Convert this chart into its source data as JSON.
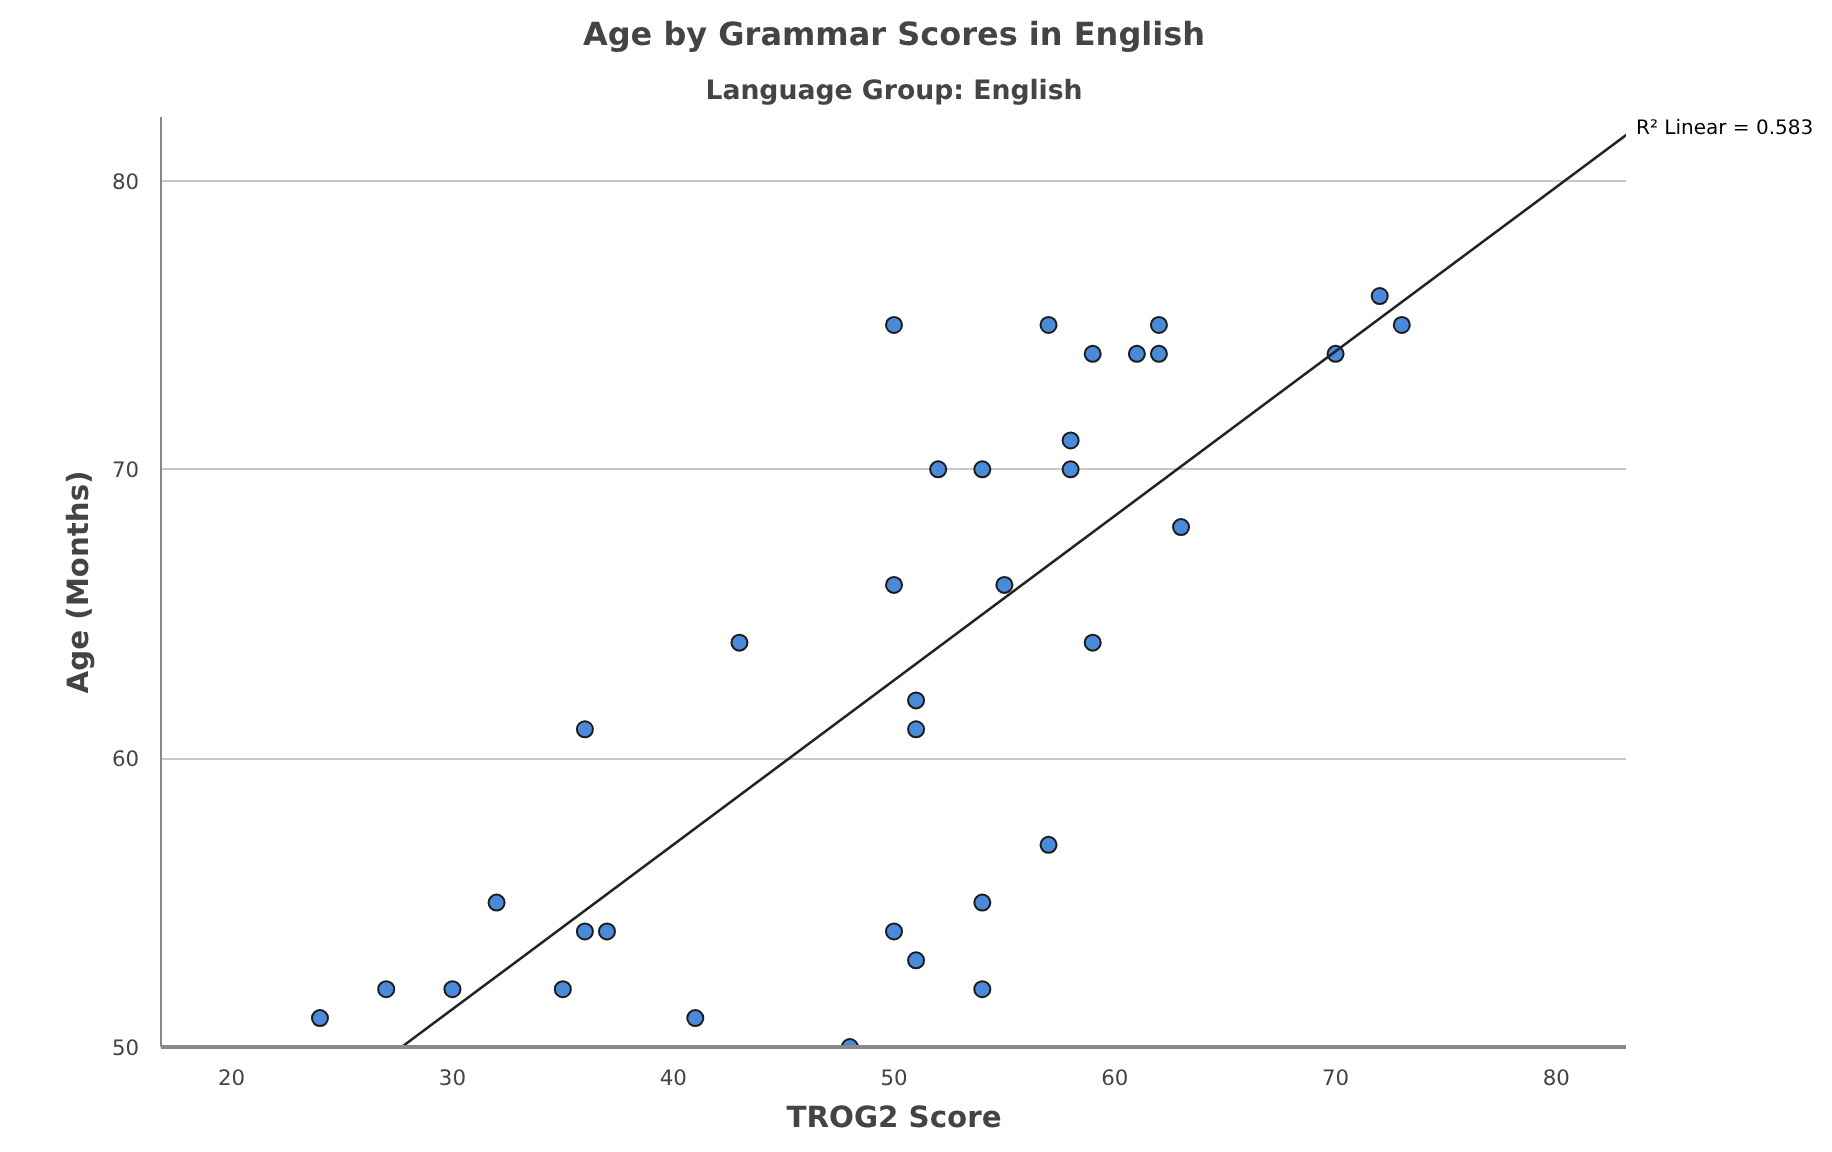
{
  "chart_data": {
    "type": "scatter",
    "title": "Age by Grammar Scores in English",
    "subtitle": "Language Group: English",
    "xlabel": "TROG2 Score",
    "ylabel": "Age (Months)",
    "series": [
      {
        "type": "scatter",
        "color": "#4a8ad8",
        "marker": "circle",
        "x": [
          24,
          27,
          30,
          32,
          35,
          36,
          37,
          36,
          41,
          43,
          48,
          50,
          50,
          50,
          51,
          51,
          51,
          52,
          54,
          54,
          54,
          55,
          57,
          57,
          58,
          58,
          59,
          59,
          61,
          62,
          62,
          63,
          70,
          72,
          73
        ],
        "values": [
          51,
          52,
          52,
          55,
          52,
          54,
          54,
          61,
          51,
          64,
          50,
          75,
          66,
          54,
          62,
          61,
          53,
          70,
          70,
          55,
          52,
          66,
          75,
          57,
          71,
          70,
          74,
          64,
          74,
          75,
          74,
          68,
          74,
          76,
          75
        ]
      },
      {
        "type": "line",
        "marker": "none",
        "color": "#222222",
        "x": [
          27.7,
          83.2
        ],
        "values": [
          50,
          81.6
        ]
      }
    ],
    "annotations": [
      "R² Linear = 0.583"
    ],
    "xlim": [
      16.8,
      83.2
    ],
    "ylim": [
      50,
      82.2
    ],
    "xticks": [
      20,
      30,
      40,
      50,
      60,
      70,
      80
    ],
    "yticks": [
      50,
      60,
      70,
      80
    ],
    "grid": "y"
  }
}
